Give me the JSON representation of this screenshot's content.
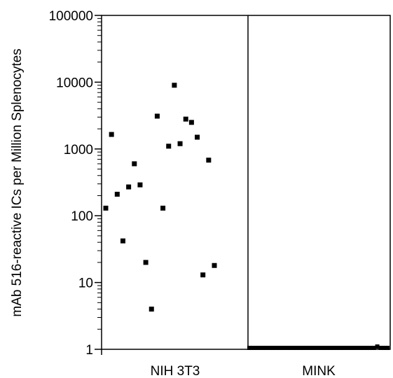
{
  "chart_data": {
    "type": "scatter",
    "title": "",
    "xlabel": "",
    "ylabel": "mAb 516-reactive ICs per Million Splenocytes",
    "y_scale": "log",
    "ylim": [
      1,
      100000
    ],
    "grid": false,
    "categories": [
      "NIH 3T3",
      "MINK"
    ],
    "y_tick_labels": [
      "1",
      "10",
      "100",
      "1000",
      "10000",
      "100000"
    ],
    "y_tick_values": [
      1,
      10,
      100,
      1000,
      10000,
      100000
    ],
    "series": [
      {
        "category": "NIH 3T3",
        "values": [
          130,
          1650,
          210,
          42,
          270,
          600,
          290,
          20,
          4,
          3100,
          130,
          1100,
          9000,
          1200,
          2800,
          2500,
          1500,
          13,
          680,
          18
        ]
      },
      {
        "category": "MINK",
        "values": [
          1.05,
          1.05,
          1.05,
          1.05,
          1.05,
          1.05,
          1.05,
          1.05,
          1.05,
          1.05,
          1.05,
          1.05,
          1.05,
          1.05,
          1.05,
          1.05,
          1.05,
          1.05,
          1.05,
          1.05,
          1.05,
          1.05,
          1.05,
          1.05,
          1.05,
          1.05,
          1.05,
          1.05,
          1.05,
          1.05,
          1.05,
          1.05,
          1.05,
          1.05,
          1.05,
          1.05,
          1.05,
          1.05,
          1.1,
          1.05,
          1.05,
          1.05
        ]
      }
    ],
    "marker_color": "#000000"
  }
}
